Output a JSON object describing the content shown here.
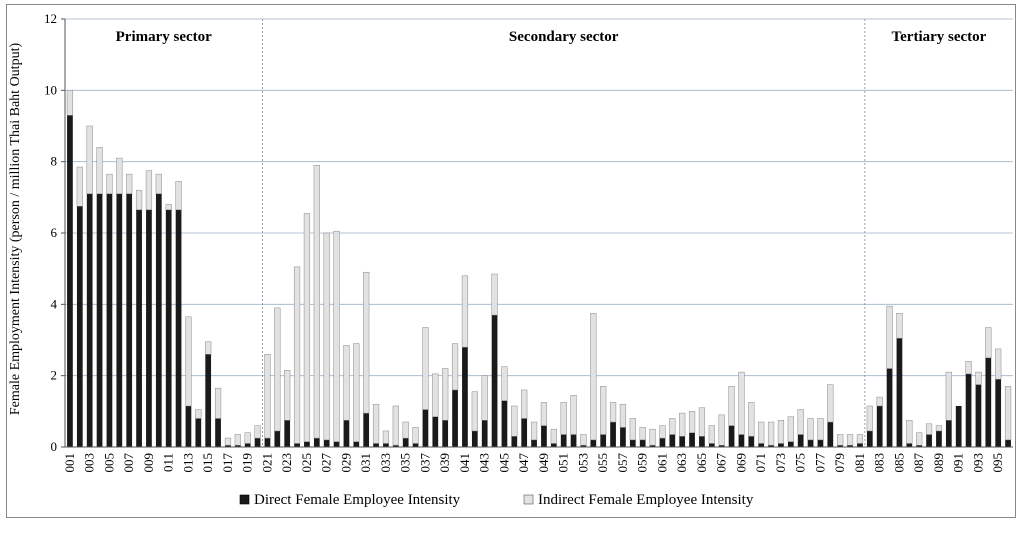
{
  "chart_data": {
    "type": "bar",
    "stacked": true,
    "ylabel": "Female Employment Intensity (person / million Thai Baht Output)",
    "xlabel": "",
    "ylim": [
      0,
      12
    ],
    "yticks": [
      0,
      2,
      4,
      6,
      8,
      10,
      12
    ],
    "grid": "horizontal",
    "legend_position": "bottom",
    "categories": [
      "001",
      "002",
      "003",
      "004",
      "005",
      "006",
      "007",
      "008",
      "009",
      "010",
      "011",
      "012",
      "013",
      "014",
      "015",
      "016",
      "017",
      "018",
      "019",
      "020",
      "021",
      "022",
      "023",
      "024",
      "025",
      "026",
      "027",
      "028",
      "029",
      "030",
      "031",
      "032",
      "033",
      "034",
      "035",
      "036",
      "037",
      "038",
      "039",
      "040",
      "041",
      "042",
      "043",
      "044",
      "045",
      "046",
      "047",
      "048",
      "049",
      "050",
      "051",
      "052",
      "053",
      "054",
      "055",
      "056",
      "057",
      "058",
      "059",
      "060",
      "061",
      "062",
      "063",
      "064",
      "065",
      "066",
      "067",
      "068",
      "069",
      "070",
      "071",
      "072",
      "073",
      "074",
      "075",
      "076",
      "077",
      "078",
      "079",
      "080",
      "081",
      "082",
      "083",
      "084",
      "085",
      "086",
      "087",
      "088",
      "089",
      "090",
      "091",
      "092",
      "093",
      "094",
      "095",
      "096"
    ],
    "x_tick_labels": [
      "001",
      "003",
      "005",
      "007",
      "009",
      "011",
      "013",
      "015",
      "017",
      "019",
      "021",
      "023",
      "025",
      "027",
      "029",
      "031",
      "033",
      "035",
      "037",
      "039",
      "041",
      "043",
      "045",
      "047",
      "049",
      "051",
      "053",
      "055",
      "057",
      "059",
      "061",
      "063",
      "065",
      "067",
      "069",
      "071",
      "073",
      "075",
      "077",
      "079",
      "081",
      "083",
      "085",
      "087",
      "089",
      "091",
      "093",
      "095"
    ],
    "series": [
      {
        "name": "Direct Female Employee Intensity",
        "color": "#1a1a1a",
        "values": [
          9.3,
          6.75,
          7.1,
          7.1,
          7.1,
          7.1,
          7.1,
          6.65,
          6.65,
          7.1,
          6.65,
          6.65,
          1.15,
          0.8,
          2.6,
          0.8,
          0.05,
          0.05,
          0.1,
          0.25,
          0.25,
          0.45,
          0.75,
          0.1,
          0.15,
          0.25,
          0.2,
          0.15,
          0.75,
          0.15,
          0.95,
          0.1,
          0.1,
          0.05,
          0.25,
          0.1,
          1.05,
          0.85,
          0.75,
          1.6,
          2.8,
          0.45,
          0.75,
          3.7,
          1.3,
          0.3,
          0.8,
          0.2,
          0.6,
          0.1,
          0.35,
          0.35,
          0.05,
          0.2,
          0.35,
          0.7,
          0.55,
          0.2,
          0.2,
          0.05,
          0.25,
          0.35,
          0.3,
          0.4,
          0.3,
          0.1,
          0.05,
          0.6,
          0.35,
          0.3,
          0.1,
          0.05,
          0.1,
          0.15,
          0.35,
          0.2,
          0.2,
          0.7,
          0.05,
          0.05,
          0.1,
          0.45,
          1.15,
          2.2,
          3.05,
          0.1,
          0.05,
          0.35,
          0.45,
          0.75,
          1.15,
          2.05,
          1.75,
          2.5,
          1.9,
          0.2
        ]
      },
      {
        "name": "Indirect Female Employee Intensity",
        "color": "#e2e2e2",
        "values": [
          0.7,
          1.1,
          1.9,
          1.3,
          0.55,
          1.0,
          0.55,
          0.55,
          1.1,
          0.55,
          0.15,
          0.8,
          2.5,
          0.25,
          0.35,
          0.85,
          0.2,
          0.3,
          0.3,
          0.35,
          2.35,
          3.45,
          1.4,
          4.95,
          6.4,
          7.65,
          5.8,
          5.9,
          2.1,
          2.75,
          3.95,
          1.1,
          0.35,
          1.1,
          0.45,
          0.45,
          2.3,
          1.2,
          1.45,
          1.3,
          2.0,
          1.1,
          1.25,
          1.15,
          0.95,
          0.85,
          0.8,
          0.5,
          0.65,
          0.4,
          0.9,
          1.1,
          0.3,
          3.55,
          1.35,
          0.55,
          0.65,
          0.6,
          0.35,
          0.45,
          0.35,
          0.45,
          0.65,
          0.6,
          0.8,
          0.5,
          0.85,
          1.1,
          1.75,
          0.95,
          0.6,
          0.65,
          0.65,
          0.7,
          0.7,
          0.6,
          0.6,
          1.05,
          0.3,
          0.3,
          0.25,
          0.7,
          0.25,
          1.75,
          0.7,
          0.65,
          0.35,
          0.3,
          0.15,
          1.35,
          0.0,
          0.35,
          0.35,
          0.85,
          0.85,
          1.5
        ]
      }
    ],
    "annotations": [
      {
        "label": "Primary sector",
        "from": "001",
        "to": "020"
      },
      {
        "label": "Secondary sector",
        "from": "021",
        "to": "081"
      },
      {
        "label": "Tertiary sector",
        "from": "082",
        "to": "096"
      }
    ]
  }
}
